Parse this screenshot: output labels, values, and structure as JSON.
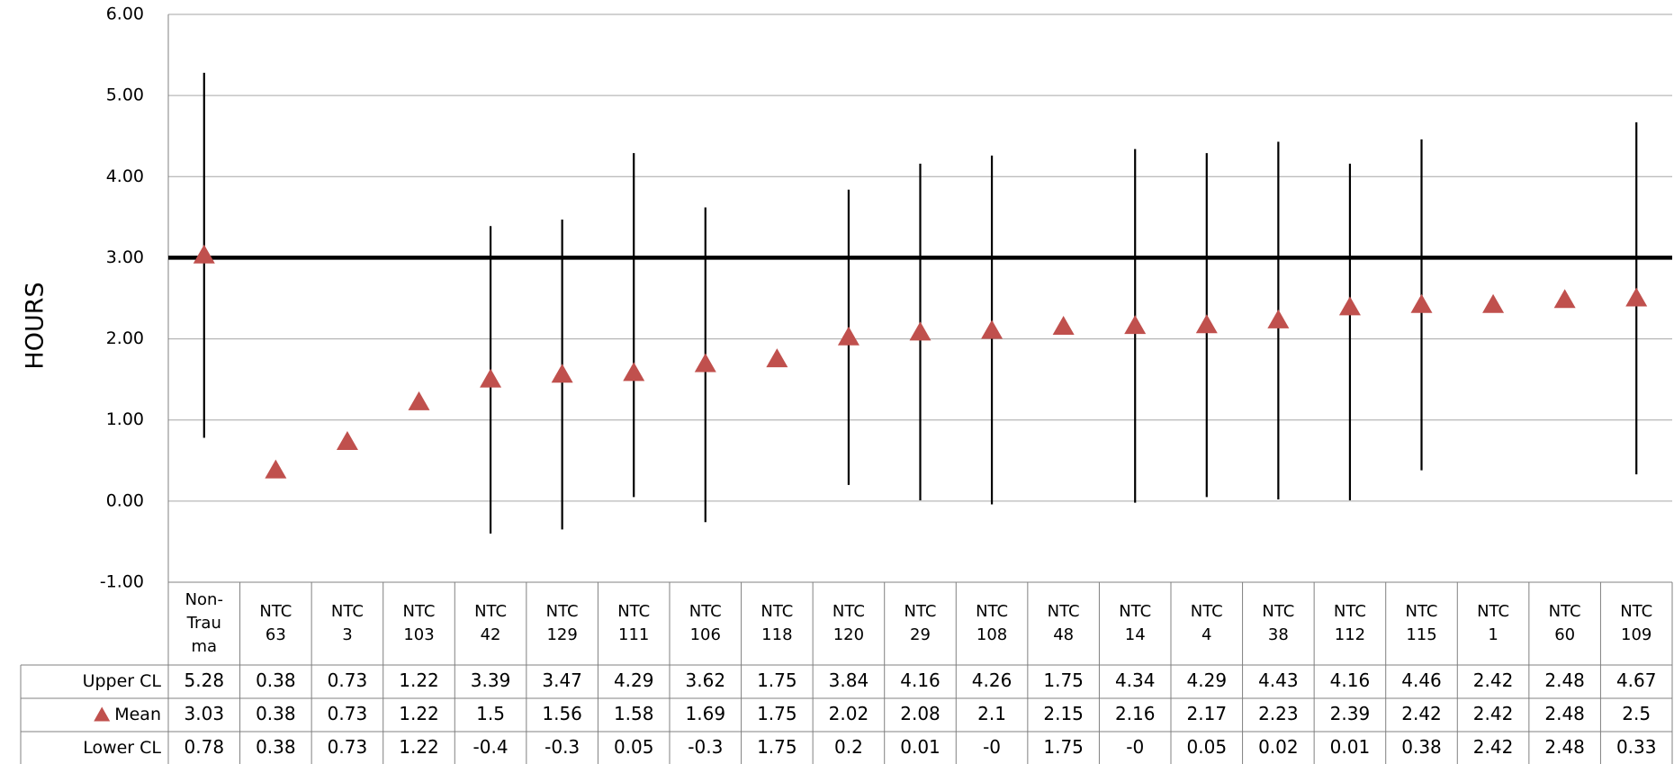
{
  "chart_data": {
    "type": "scatter",
    "ylabel": "HOURS",
    "ylim": [
      -1,
      6
    ],
    "y_ticks": [
      "-1.00",
      "0.00",
      "1.00",
      "2.00",
      "3.00",
      "4.00",
      "5.00",
      "6.00"
    ],
    "reference_line": 3.0,
    "grid": true,
    "categories": [
      [
        "Non-",
        "Trau",
        "ma"
      ],
      [
        "NTC",
        "63"
      ],
      [
        "NTC",
        "3"
      ],
      [
        "NTC",
        "103"
      ],
      [
        "NTC",
        "42"
      ],
      [
        "NTC",
        "129"
      ],
      [
        "NTC",
        "111"
      ],
      [
        "NTC",
        "106"
      ],
      [
        "NTC",
        "118"
      ],
      [
        "NTC",
        "120"
      ],
      [
        "NTC",
        "29"
      ],
      [
        "NTC",
        "108"
      ],
      [
        "NTC",
        "48"
      ],
      [
        "NTC",
        "14"
      ],
      [
        "NTC",
        "4"
      ],
      [
        "NTC",
        "38"
      ],
      [
        "NTC",
        "112"
      ],
      [
        "NTC",
        "115"
      ],
      [
        "NTC",
        "1"
      ],
      [
        "NTC",
        "60"
      ],
      [
        "NTC",
        "109"
      ]
    ],
    "series": [
      {
        "name": "Upper CL",
        "values": [
          5.28,
          0.38,
          0.73,
          1.22,
          3.39,
          3.47,
          4.29,
          3.62,
          1.75,
          3.84,
          4.16,
          4.26,
          1.75,
          4.34,
          4.29,
          4.43,
          4.16,
          4.46,
          2.42,
          2.48,
          4.67
        ],
        "labels": [
          "5.28",
          "0.38",
          "0.73",
          "1.22",
          "3.39",
          "3.47",
          "4.29",
          "3.62",
          "1.75",
          "3.84",
          "4.16",
          "4.26",
          "1.75",
          "4.34",
          "4.29",
          "4.43",
          "4.16",
          "4.46",
          "2.42",
          "2.48",
          "4.67"
        ]
      },
      {
        "name": "Mean",
        "values": [
          3.03,
          0.38,
          0.73,
          1.22,
          1.5,
          1.56,
          1.58,
          1.69,
          1.75,
          2.02,
          2.08,
          2.1,
          2.15,
          2.16,
          2.17,
          2.23,
          2.39,
          2.42,
          2.42,
          2.48,
          2.5
        ],
        "labels": [
          "3.03",
          "0.38",
          "0.73",
          "1.22",
          "1.5",
          "1.56",
          "1.58",
          "1.69",
          "1.75",
          "2.02",
          "2.08",
          "2.1",
          "2.15",
          "2.16",
          "2.17",
          "2.23",
          "2.39",
          "2.42",
          "2.42",
          "2.48",
          "2.5"
        ],
        "color": "#C0504D"
      },
      {
        "name": "Lower CL",
        "values": [
          0.78,
          0.38,
          0.73,
          1.22,
          -0.4,
          -0.35,
          0.05,
          -0.26,
          1.75,
          0.2,
          0.01,
          -0.04,
          1.75,
          -0.02,
          0.05,
          0.02,
          0.01,
          0.38,
          2.42,
          2.48,
          0.33
        ],
        "labels": [
          "0.78",
          "0.38",
          "0.73",
          "1.22",
          "-0.4",
          "-0.3",
          "0.05",
          "-0.3",
          "1.75",
          "0.2",
          "0.01",
          "-0",
          "1.75",
          "-0",
          "0.05",
          "0.02",
          "0.01",
          "0.38",
          "2.42",
          "2.48",
          "0.33"
        ]
      }
    ]
  }
}
